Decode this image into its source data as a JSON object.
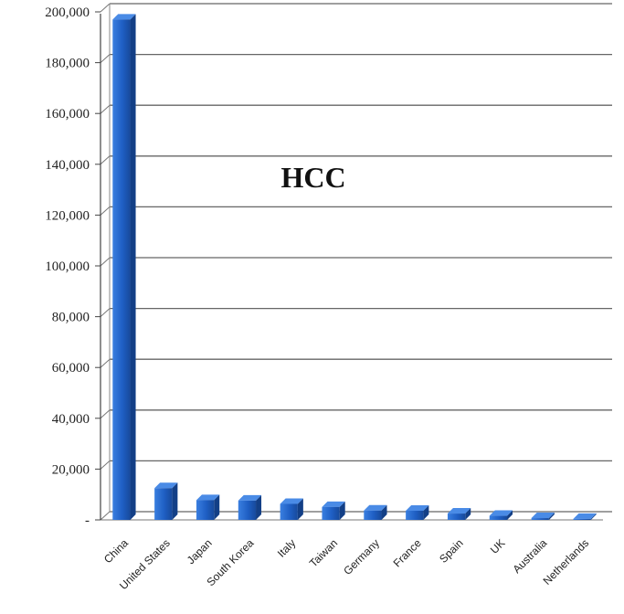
{
  "chart_data": {
    "type": "bar",
    "title": "HCC",
    "xlabel": "",
    "ylabel": "",
    "categories": [
      "China",
      "United States",
      "Japan",
      "South Korea",
      "Italy",
      "Taiwan",
      "Germany",
      "France",
      "Spain",
      "UK",
      "Australia",
      "Netherlands"
    ],
    "values": [
      197000,
      12500,
      7800,
      7600,
      6300,
      5100,
      3700,
      3600,
      2500,
      1600,
      700,
      400
    ],
    "ylim": [
      0,
      200000
    ],
    "yticks": [
      0,
      20000,
      40000,
      60000,
      80000,
      100000,
      120000,
      140000,
      160000,
      180000,
      200000
    ],
    "ytick_labels": [
      "-",
      "20,000",
      "40,000",
      "60,000",
      "80,000",
      "100,000",
      "120,000",
      "140,000",
      "160,000",
      "180,000",
      "200,000"
    ],
    "grid": true,
    "bar_color": "#1f5fc4"
  }
}
